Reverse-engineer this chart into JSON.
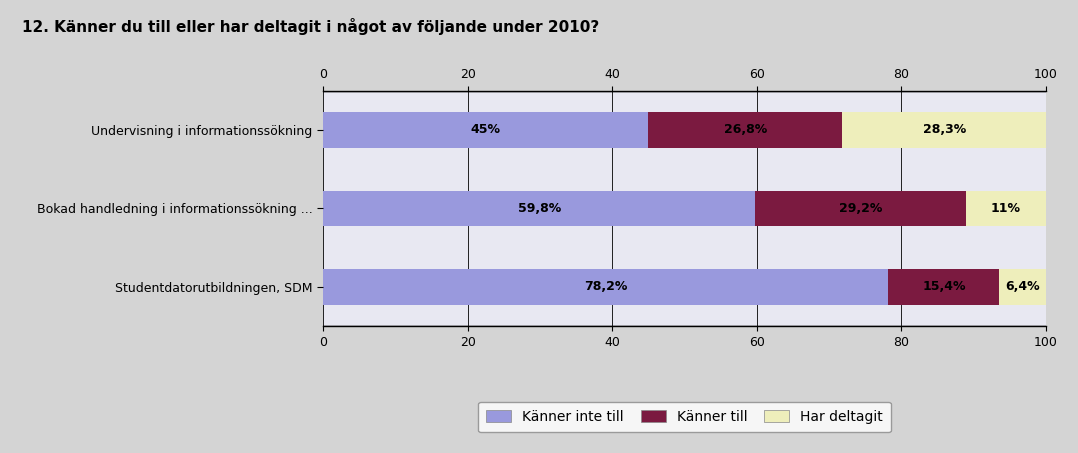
{
  "title": "12. Känner du till eller har deltagit i något av följande under 2010?",
  "categories": [
    "Studentdatorutbildningen, SDM",
    "Bokad handledning i informationssökning ...",
    "Undervisning i informationssökning"
  ],
  "series": {
    "Känner inte till": [
      78.2,
      59.8,
      45.0
    ],
    "Känner till": [
      15.4,
      29.2,
      26.8
    ],
    "Har deltagit": [
      6.4,
      11.0,
      28.3
    ]
  },
  "labels": {
    "Känner inte till": [
      "78,2%",
      "59,8%",
      "45%"
    ],
    "Känner till": [
      "15,4%",
      "29,2%",
      "26,8%"
    ],
    "Har deltagit": [
      "6,4%",
      "11%",
      "28,3%"
    ]
  },
  "colors": {
    "Känner inte till": "#9999DD",
    "Känner till": "#7B1A40",
    "Har deltagit": "#EEEEBB"
  },
  "xlim": [
    0,
    100
  ],
  "xticks": [
    0,
    20,
    40,
    60,
    80,
    100
  ],
  "background_color": "#D4D4D4",
  "plot_bg_color": "#E8E8F2",
  "title_fontsize": 11,
  "bar_height": 0.45,
  "legend_fontsize": 10
}
